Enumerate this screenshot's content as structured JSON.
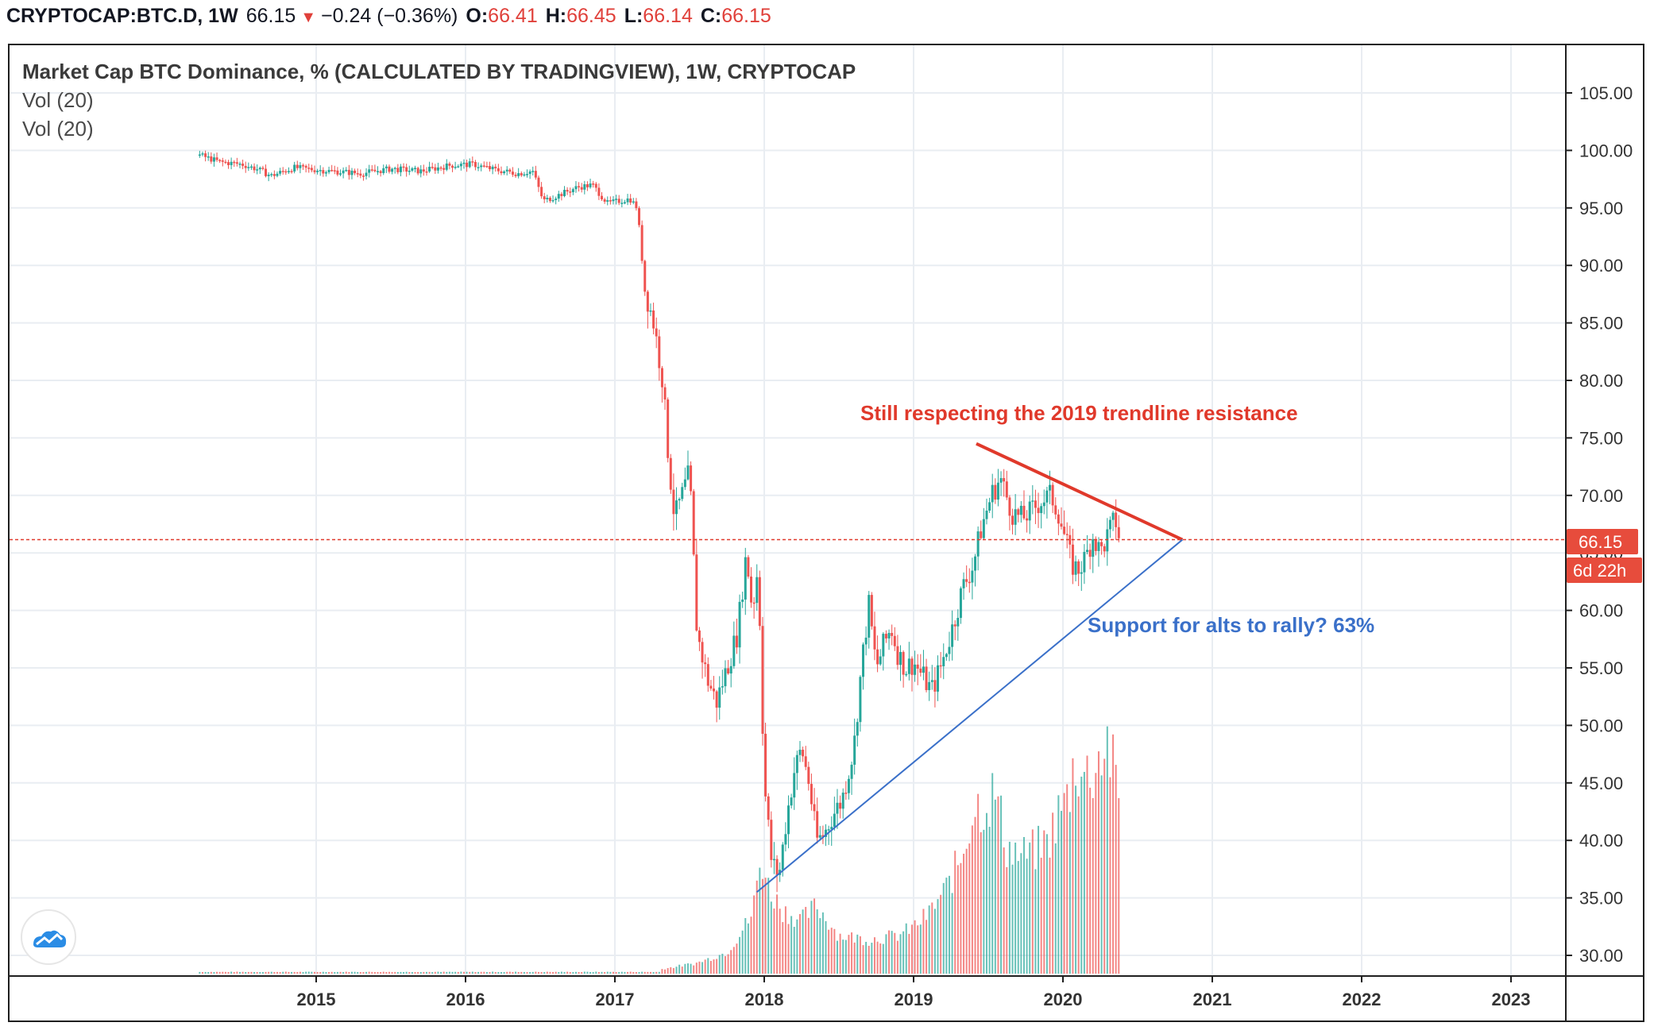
{
  "header": {
    "symbol": "CRYPTOCAP:BTC.D, 1W",
    "last": "66.15",
    "change_arrow": "▼",
    "change": "−0.24 (−0.36%)",
    "o_label": "O:",
    "o_value": "66.41",
    "h_label": "H:",
    "h_value": "66.45",
    "l_label": "L:",
    "l_value": "66.14",
    "c_label": "C:",
    "c_value": "66.15"
  },
  "legend": {
    "title": "Market Cap BTC Dominance, % (CALCULATED BY TRADINGVIEW), 1W, CRYPTOCAP",
    "vol1": "Vol (20)",
    "vol2": "Vol (20)"
  },
  "colors": {
    "up": "#26a69a",
    "down": "#ef5350",
    "resistance": "#e0392b",
    "support": "#3a70c9",
    "price_line": "#e0392b",
    "grid": "#e9edf2"
  },
  "annotations": {
    "resistance_text": "Still respecting the 2019 trendline resistance",
    "support_text": "Support for alts to rally? 63%",
    "price_tag": "66.15",
    "countdown_tag": "6d 22h"
  },
  "chart_data": {
    "type": "candlestick",
    "title": "Market Cap BTC Dominance, % (CALCULATED BY TRADINGVIEW), 1W, CRYPTOCAP",
    "ylim": [
      28,
      110
    ],
    "yticks": [
      "30.00",
      "35.00",
      "40.00",
      "45.00",
      "50.00",
      "55.00",
      "60.00",
      "65.00",
      "70.00",
      "75.00",
      "80.00",
      "85.00",
      "90.00",
      "95.00",
      "100.00",
      "105.00"
    ],
    "xticks": [
      "2015",
      "2016",
      "2017",
      "2018",
      "2019",
      "2020",
      "2021",
      "2022",
      "2023"
    ],
    "xlim": [
      2014.3,
      2023.55
    ],
    "last_price": 66.15,
    "price_path": [
      [
        2014.22,
        99.6
      ],
      [
        2014.35,
        99.0
      ],
      [
        2014.5,
        98.8
      ],
      [
        2014.6,
        98.4
      ],
      [
        2014.7,
        97.8
      ],
      [
        2014.85,
        98.5
      ],
      [
        2015.1,
        98.2
      ],
      [
        2015.3,
        98.0
      ],
      [
        2015.5,
        98.4
      ],
      [
        2015.7,
        98.2
      ],
      [
        2015.9,
        98.7
      ],
      [
        2016.05,
        98.8
      ],
      [
        2016.2,
        98.3
      ],
      [
        2016.35,
        98.0
      ],
      [
        2016.45,
        98.2
      ],
      [
        2016.52,
        95.6
      ],
      [
        2016.6,
        96.0
      ],
      [
        2016.75,
        96.8
      ],
      [
        2016.85,
        97.0
      ],
      [
        2016.95,
        95.4
      ],
      [
        2017.1,
        95.8
      ],
      [
        2017.15,
        95.0
      ],
      [
        2017.2,
        88.0
      ],
      [
        2017.26,
        85.0
      ],
      [
        2017.32,
        80.0
      ],
      [
        2017.36,
        73.0
      ],
      [
        2017.4,
        68.0
      ],
      [
        2017.45,
        70.0
      ],
      [
        2017.5,
        72.0
      ],
      [
        2017.55,
        58.0
      ],
      [
        2017.62,
        54.0
      ],
      [
        2017.68,
        52.0
      ],
      [
        2017.75,
        55.0
      ],
      [
        2017.82,
        58.0
      ],
      [
        2017.88,
        65.0
      ],
      [
        2017.92,
        60.0
      ],
      [
        2017.96,
        64.0
      ],
      [
        2018.0,
        45.0
      ],
      [
        2018.05,
        38.0
      ],
      [
        2018.1,
        37.0
      ],
      [
        2018.15,
        42.0
      ],
      [
        2018.2,
        46.0
      ],
      [
        2018.25,
        48.0
      ],
      [
        2018.3,
        45.0
      ],
      [
        2018.35,
        40.0
      ],
      [
        2018.4,
        40.5
      ],
      [
        2018.45,
        42.0
      ],
      [
        2018.52,
        43.5
      ],
      [
        2018.6,
        48.0
      ],
      [
        2018.65,
        55.0
      ],
      [
        2018.7,
        60.5
      ],
      [
        2018.75,
        55.0
      ],
      [
        2018.8,
        57.0
      ],
      [
        2018.85,
        58.5
      ],
      [
        2018.9,
        56.0
      ],
      [
        2018.95,
        55.0
      ],
      [
        2019.0,
        55.5
      ],
      [
        2019.05,
        54.5
      ],
      [
        2019.12,
        53.0
      ],
      [
        2019.18,
        55.0
      ],
      [
        2019.25,
        58.0
      ],
      [
        2019.33,
        62.0
      ],
      [
        2019.4,
        64.0
      ],
      [
        2019.45,
        67.0
      ],
      [
        2019.52,
        70.0
      ],
      [
        2019.58,
        71.5
      ],
      [
        2019.62,
        70.0
      ],
      [
        2019.66,
        68.5
      ],
      [
        2019.72,
        68.0
      ],
      [
        2019.78,
        68.5
      ],
      [
        2019.85,
        69.5
      ],
      [
        2019.92,
        70.0
      ],
      [
        2019.97,
        68.5
      ],
      [
        2020.02,
        66.0
      ],
      [
        2020.06,
        64.0
      ],
      [
        2020.1,
        63.5
      ],
      [
        2020.15,
        64.5
      ],
      [
        2020.2,
        66.5
      ],
      [
        2020.25,
        65.0
      ],
      [
        2020.3,
        66.5
      ],
      [
        2020.35,
        68.0
      ],
      [
        2020.38,
        66.15
      ]
    ],
    "volume_path": [
      [
        2017.3,
        0.02
      ],
      [
        2017.55,
        0.05
      ],
      [
        2017.75,
        0.1
      ],
      [
        2017.85,
        0.2
      ],
      [
        2017.92,
        0.28
      ],
      [
        2017.98,
        0.55
      ],
      [
        2018.03,
        0.4
      ],
      [
        2018.12,
        0.3
      ],
      [
        2018.25,
        0.25
      ],
      [
        2018.35,
        0.32
      ],
      [
        2018.5,
        0.18
      ],
      [
        2018.7,
        0.16
      ],
      [
        2018.9,
        0.18
      ],
      [
        2019.0,
        0.22
      ],
      [
        2019.1,
        0.28
      ],
      [
        2019.22,
        0.4
      ],
      [
        2019.32,
        0.55
      ],
      [
        2019.4,
        0.78
      ],
      [
        2019.48,
        0.8
      ],
      [
        2019.55,
        0.85
      ],
      [
        2019.62,
        0.6
      ],
      [
        2019.72,
        0.55
      ],
      [
        2019.82,
        0.58
      ],
      [
        2019.9,
        0.62
      ],
      [
        2019.97,
        0.75
      ],
      [
        2020.03,
        0.82
      ],
      [
        2020.08,
        1.0
      ],
      [
        2020.15,
        0.92
      ],
      [
        2020.22,
        0.98
      ],
      [
        2020.3,
        1.1
      ],
      [
        2020.36,
        0.85
      ]
    ],
    "resistance_line": {
      "x": [
        2019.42,
        2020.8
      ],
      "y": [
        74.5,
        66.15
      ]
    },
    "support_line": {
      "x": [
        2017.95,
        2020.8
      ],
      "y": [
        35.5,
        66.15
      ]
    }
  }
}
